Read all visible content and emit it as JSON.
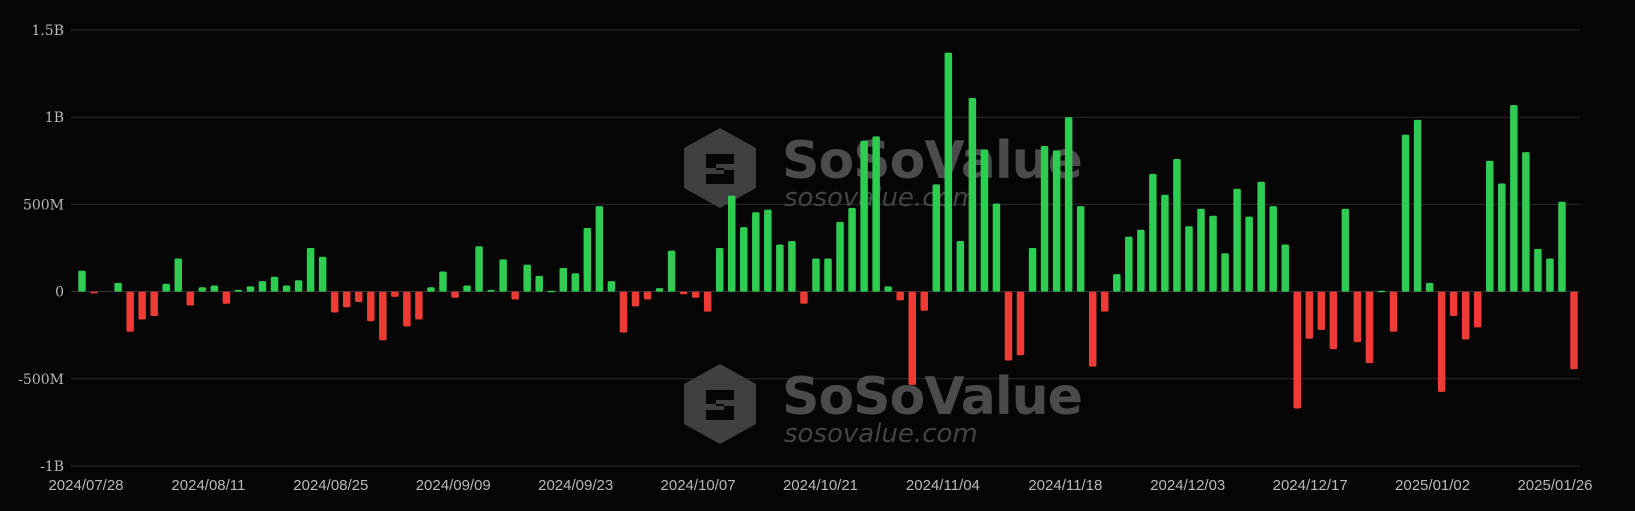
{
  "watermark": {
    "brand": "SoSoValue",
    "domain": "sosovalue.com"
  },
  "colors": {
    "positive": "#2ecc51",
    "negative": "#ef3b36",
    "background": "#050505",
    "grid": "#2c2c2c",
    "text": "#b9b9b9"
  },
  "chart_data": {
    "type": "bar",
    "title": "",
    "xlabel": "",
    "ylabel": "",
    "unit": "USD",
    "ylim": [
      -1000000000,
      1500000000
    ],
    "y_ticks": [
      {
        "value": 1500000000,
        "label": "1.5B"
      },
      {
        "value": 1000000000,
        "label": "1B"
      },
      {
        "value": 500000000,
        "label": "500M"
      },
      {
        "value": 0,
        "label": "0"
      },
      {
        "value": -500000000,
        "label": "-500M"
      },
      {
        "value": -1000000000,
        "label": "-1B"
      }
    ],
    "x_ticks": [
      "2024/07/28",
      "2024/08/11",
      "2024/08/25",
      "2024/09/09",
      "2024/09/23",
      "2024/10/07",
      "2024/10/21",
      "2024/11/04",
      "2024/11/18",
      "2024/12/03",
      "2024/12/17",
      "2025/01/02",
      "2025/01/26"
    ],
    "grid": true,
    "legend": "none",
    "positive_color": "#2ecc51",
    "negative_color": "#ef3b36",
    "series": [
      {
        "values": [
          120000000,
          -10000000,
          0,
          50000000,
          -230000000,
          -160000000,
          -140000000,
          45000000,
          190000000,
          -80000000,
          25000000,
          35000000,
          -70000000,
          10000000,
          30000000,
          60000000,
          85000000,
          35000000,
          65000000,
          250000000,
          200000000,
          -120000000,
          -90000000,
          -60000000,
          -170000000,
          -280000000,
          -30000000,
          -200000000,
          -160000000,
          25000000,
          115000000,
          -35000000,
          35000000,
          260000000,
          10000000,
          185000000,
          -45000000,
          155000000,
          90000000,
          5000000,
          135000000,
          105000000,
          365000000,
          490000000,
          60000000,
          -235000000,
          -85000000,
          -45000000,
          20000000,
          235000000,
          -15000000,
          -35000000,
          -115000000,
          250000000,
          550000000,
          370000000,
          455000000,
          470000000,
          270000000,
          290000000,
          -70000000,
          190000000,
          190000000,
          400000000,
          480000000,
          865000000,
          890000000,
          30000000,
          -50000000,
          -535000000,
          -110000000,
          615000000,
          1370000000,
          290000000,
          1110000000,
          815000000,
          505000000,
          -395000000,
          -365000000,
          250000000,
          835000000,
          810000000,
          1000000000,
          490000000,
          -430000000,
          -115000000,
          100000000,
          315000000,
          355000000,
          675000000,
          555000000,
          760000000,
          375000000,
          475000000,
          435000000,
          220000000,
          590000000,
          430000000,
          630000000,
          490000000,
          270000000,
          -670000000,
          -270000000,
          -220000000,
          -330000000,
          475000000,
          -290000000,
          -410000000,
          5000000,
          -230000000,
          900000000,
          985000000,
          50000000,
          -575000000,
          -140000000,
          -275000000,
          -205000000,
          750000000,
          620000000,
          1070000000,
          800000000,
          245000000,
          190000000,
          515000000,
          -445000000
        ]
      }
    ]
  }
}
